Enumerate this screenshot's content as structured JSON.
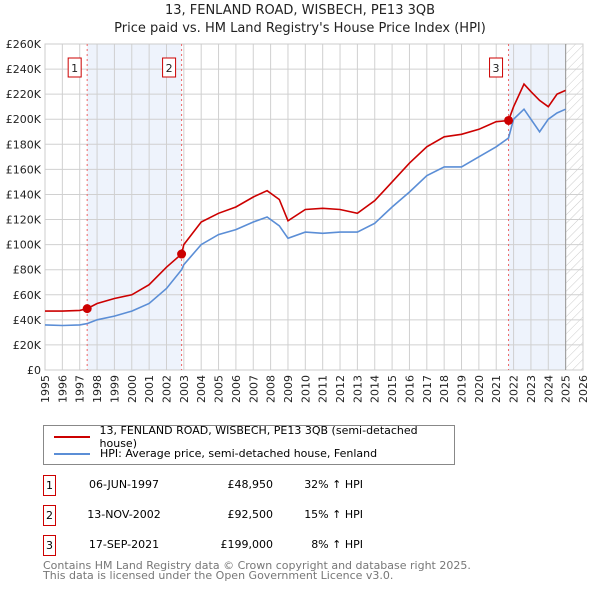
{
  "chart_data": {
    "type": "line",
    "title": "13, FENLAND ROAD, WISBECH, PE13 3QB",
    "subtitle": "Price paid vs. HM Land Registry's House Price Index (HPI)",
    "xlim": [
      1995,
      2026
    ],
    "ylim": [
      0,
      260000
    ],
    "x_ticks": [
      "1995",
      "1996",
      "1997",
      "1998",
      "1999",
      "2000",
      "2001",
      "2002",
      "2003",
      "2004",
      "2005",
      "2006",
      "2007",
      "2008",
      "2009",
      "2010",
      "2011",
      "2012",
      "2013",
      "2014",
      "2015",
      "2016",
      "2017",
      "2018",
      "2019",
      "2020",
      "2021",
      "2022",
      "2023",
      "2024",
      "2025",
      "2026"
    ],
    "y_ticks": [
      "£0",
      "£20K",
      "£40K",
      "£60K",
      "£80K",
      "£100K",
      "£120K",
      "£140K",
      "£160K",
      "£180K",
      "£200K",
      "£220K",
      "£240K",
      "£260K"
    ],
    "series": [
      {
        "name": "13, FENLAND ROAD, WISBECH, PE13 3QB (semi-detached house)",
        "color": "#cc0000",
        "x": [
          1995,
          1996,
          1997,
          1997.43,
          1998,
          1999,
          2000,
          2001,
          2002,
          2002.87,
          2003,
          2004,
          2005,
          2006,
          2007,
          2007.8,
          2008.5,
          2009,
          2010,
          2011,
          2012,
          2013,
          2014,
          2015,
          2016,
          2017,
          2018,
          2019,
          2020,
          2021,
          2021.71,
          2022,
          2022.6,
          2023,
          2023.5,
          2024,
          2024.5,
          2025
        ],
        "y": [
          47000,
          47000,
          47500,
          48950,
          53000,
          57000,
          60000,
          68000,
          82000,
          92500,
          100000,
          118000,
          125000,
          130000,
          138000,
          143000,
          136000,
          119000,
          128000,
          129000,
          128000,
          125000,
          135000,
          150000,
          165000,
          178000,
          186000,
          188000,
          192000,
          198000,
          199000,
          210000,
          228000,
          222000,
          215000,
          210000,
          220000,
          223000
        ]
      },
      {
        "name": "HPI: Average price, semi-detached house, Fenland",
        "color": "#5b8ed6",
        "x": [
          1995,
          1996,
          1997,
          1997.43,
          1998,
          1999,
          2000,
          2001,
          2002,
          2002.87,
          2003,
          2004,
          2005,
          2006,
          2007,
          2007.8,
          2008.5,
          2009,
          2010,
          2011,
          2012,
          2013,
          2014,
          2015,
          2016,
          2017,
          2018,
          2019,
          2020,
          2021,
          2021.71,
          2022,
          2022.6,
          2023,
          2023.5,
          2024,
          2024.5,
          2025
        ],
        "y": [
          36000,
          35500,
          36000,
          37000,
          40000,
          43000,
          47000,
          53000,
          65000,
          80000,
          84000,
          100000,
          108000,
          112000,
          118000,
          122000,
          115000,
          105000,
          110000,
          109000,
          110000,
          110000,
          117000,
          130000,
          142000,
          155000,
          162000,
          162000,
          170000,
          178000,
          185000,
          200000,
          208000,
          200000,
          190000,
          200000,
          205000,
          208000
        ]
      }
    ],
    "sales": [
      {
        "label": "1",
        "x": 1997.43,
        "price": 48950
      },
      {
        "label": "2",
        "x": 2002.87,
        "price": 92500
      },
      {
        "label": "3",
        "x": 2021.71,
        "price": 199000
      }
    ],
    "shaded": [
      [
        1997.43,
        2002.87
      ],
      [
        2021.71,
        2025.0
      ]
    ],
    "hatched_from": 2025.0,
    "grid": true
  },
  "legend": {
    "red": "13, FENLAND ROAD, WISBECH, PE13 3QB (semi-detached house)",
    "blue": "HPI: Average price, semi-detached house, Fenland"
  },
  "table": [
    {
      "n": "1",
      "date": "06-JUN-1997",
      "price": "£48,950",
      "hpi": "32% ↑ HPI"
    },
    {
      "n": "2",
      "date": "13-NOV-2002",
      "price": "£92,500",
      "hpi": "15% ↑ HPI"
    },
    {
      "n": "3",
      "date": "17-SEP-2021",
      "price": "£199,000",
      "hpi": "8% ↑ HPI"
    }
  ],
  "footer": [
    "Contains HM Land Registry data © Crown copyright and database right 2025.",
    "This data is licensed under the Open Government Licence v3.0."
  ]
}
